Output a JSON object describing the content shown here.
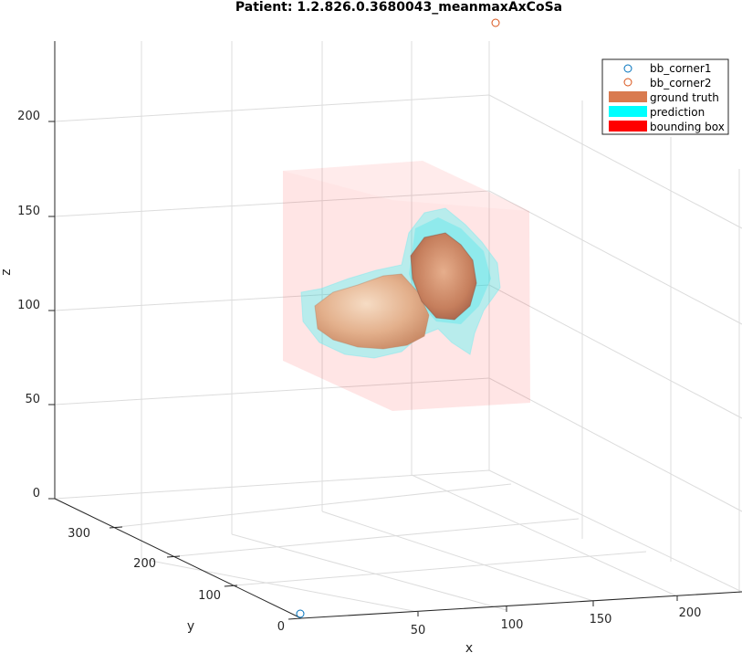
{
  "chart_data": {
    "type": "3d-scatter",
    "title": "Patient: 1.2.826.0.3680043_meanmaxAxCoSa",
    "xlabel": "x",
    "ylabel": "y",
    "zlabel": "z",
    "xlim": [
      0,
      230
    ],
    "ylim": [
      0,
      380
    ],
    "zlim": [
      0,
      240
    ],
    "x_ticks": [
      "0",
      "50",
      "100",
      "150",
      "200"
    ],
    "y_ticks": [
      "0",
      "100",
      "200",
      "300"
    ],
    "z_ticks": [
      "0",
      "50",
      "100",
      "150",
      "200"
    ],
    "grid": true,
    "legend_position": "top-right",
    "legend": [
      {
        "label": "bb_corner1",
        "kind": "marker",
        "color": "#0072BD"
      },
      {
        "label": "bb_corner2",
        "kind": "marker",
        "color": "#D95319"
      },
      {
        "label": "ground truth",
        "kind": "patch",
        "color": "#D97A4F"
      },
      {
        "label": "prediction",
        "kind": "patch",
        "color": "#00FFFF"
      },
      {
        "label": "bounding box",
        "kind": "patch",
        "color": "#FF0000"
      }
    ],
    "points": [
      {
        "name": "bb_corner1",
        "x": 0,
        "y": 0,
        "z": 0
      },
      {
        "name": "bb_corner2",
        "x": 230,
        "y": 380,
        "z": 240
      }
    ]
  }
}
